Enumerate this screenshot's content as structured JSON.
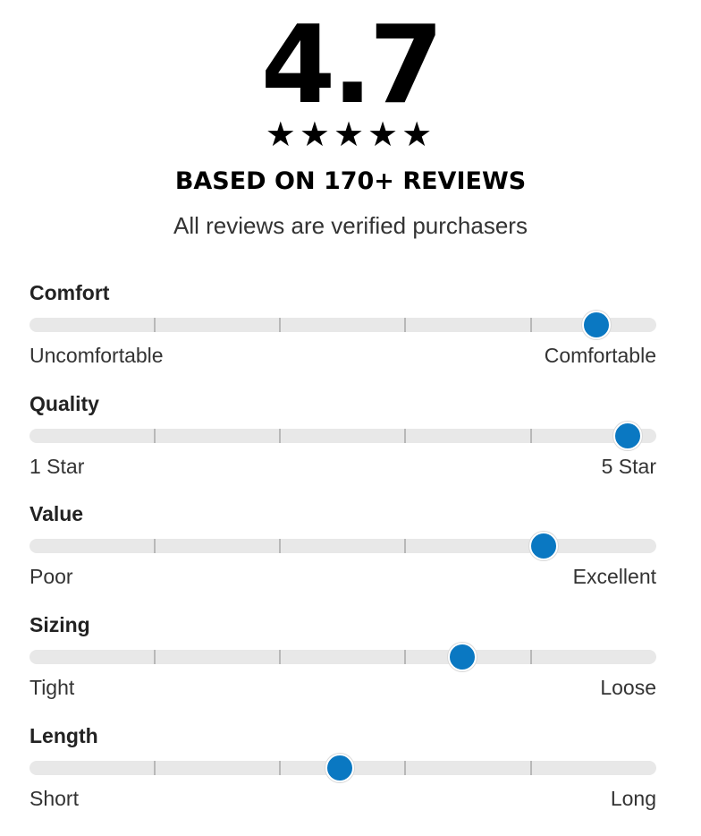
{
  "summary": {
    "score": "4.7",
    "stars": [
      "★",
      "★",
      "★",
      "★",
      "★"
    ],
    "based_on": "BASED ON 170+ REVIEWS",
    "verified_note": "All reviews are verified purchasers"
  },
  "factors": [
    {
      "title": "Comfort",
      "left_label": "Uncomfortable",
      "right_label": "Comfortable",
      "value": 0.905
    },
    {
      "title": "Quality",
      "left_label": "1 Star",
      "right_label": "5 Star",
      "value": 0.955
    },
    {
      "title": "Value",
      "left_label": "Poor",
      "right_label": "Excellent",
      "value": 0.82
    },
    {
      "title": "Sizing",
      "left_label": "Tight",
      "right_label": "Loose",
      "value": 0.69
    },
    {
      "title": "Length",
      "left_label": "Short",
      "right_label": "Long",
      "value": 0.495
    }
  ],
  "colors": {
    "thumb": "#0a78c2",
    "track": "#e8e8e8",
    "tick": "#b8b8b8",
    "text": "#222222"
  }
}
